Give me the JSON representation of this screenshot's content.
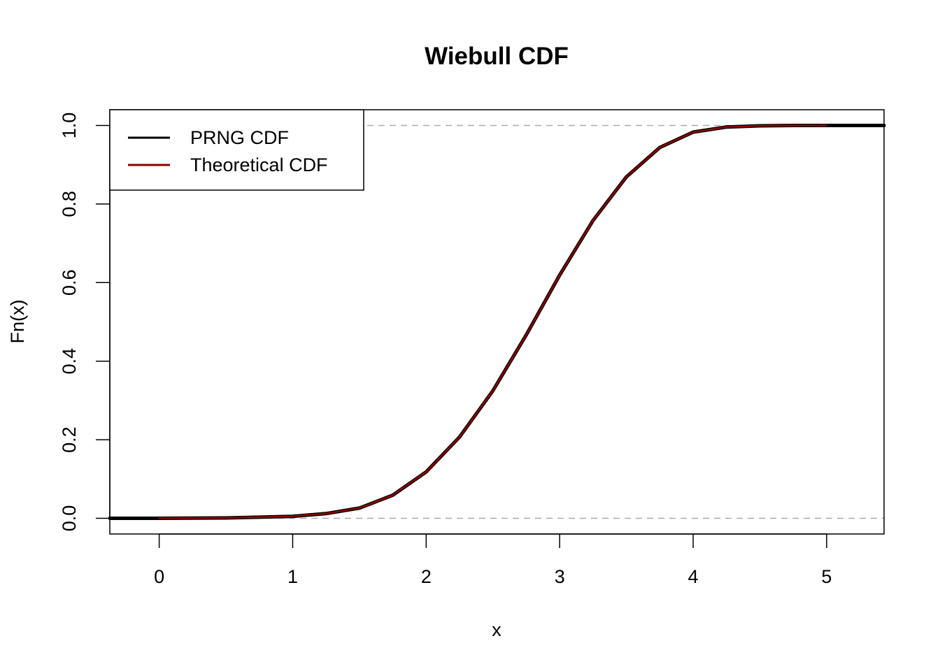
{
  "chart_data": {
    "type": "line",
    "title": "Wiebull CDF",
    "xlabel": "x",
    "ylabel": "Fn(x)",
    "xlim": [
      -0.37,
      5.43
    ],
    "ylim": [
      -0.04,
      1.04
    ],
    "x_ticks": [
      "0",
      "1",
      "2",
      "3",
      "4",
      "5"
    ],
    "y_ticks": [
      "0.0",
      "0.2",
      "0.4",
      "0.6",
      "0.8",
      "1.0"
    ],
    "reference_lines": [
      0,
      1
    ],
    "legend": {
      "position": "top-left",
      "entries": [
        "PRNG CDF",
        "Theoretical CDF"
      ]
    },
    "series": [
      {
        "name": "PRNG CDF",
        "color": "#000000",
        "x": [
          -0.37,
          0,
          0.5,
          1.0,
          1.25,
          1.5,
          1.75,
          2.0,
          2.25,
          2.5,
          2.75,
          3.0,
          3.25,
          3.5,
          3.75,
          4.0,
          4.25,
          4.5,
          4.75,
          5.0,
          5.43
        ],
        "y": [
          0,
          0,
          0.001,
          0.005,
          0.012,
          0.026,
          0.059,
          0.118,
          0.207,
          0.325,
          0.467,
          0.619,
          0.758,
          0.869,
          0.944,
          0.983,
          0.996,
          0.999,
          1.0,
          1.0,
          1.0
        ]
      },
      {
        "name": "Theoretical CDF",
        "color": "#8b0000",
        "x": [
          0,
          0.5,
          1.0,
          1.25,
          1.5,
          1.75,
          2.0,
          2.25,
          2.5,
          2.75,
          3.0,
          3.25,
          3.5,
          3.75,
          4.0,
          4.25,
          4.5,
          4.75,
          5.0
        ],
        "y": [
          0,
          0.001,
          0.005,
          0.012,
          0.026,
          0.059,
          0.118,
          0.207,
          0.325,
          0.467,
          0.619,
          0.758,
          0.869,
          0.944,
          0.983,
          0.996,
          0.999,
          1.0,
          1.0
        ]
      }
    ],
    "grid": false
  }
}
